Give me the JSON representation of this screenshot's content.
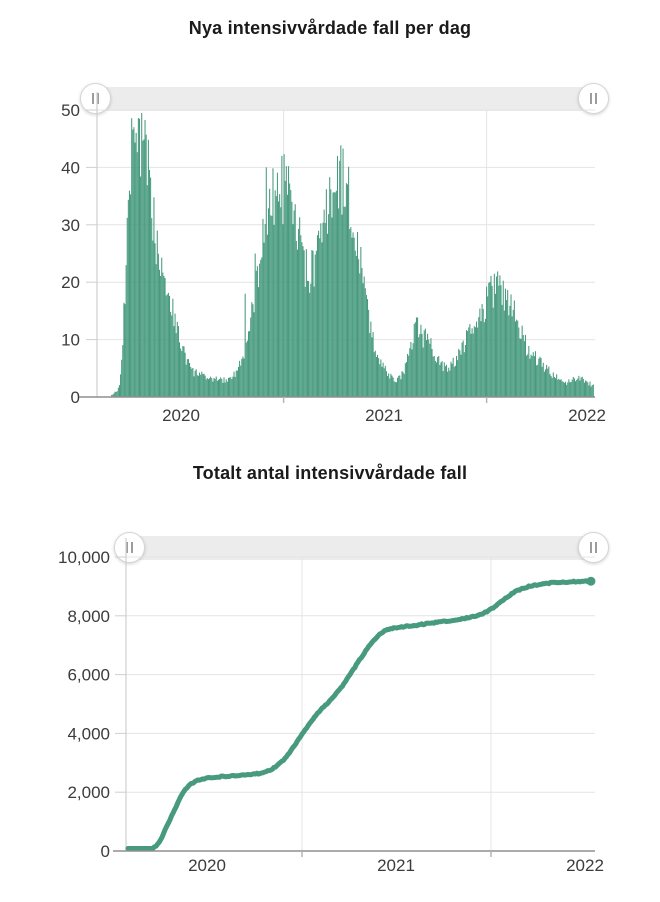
{
  "page": {
    "background": "#ffffff"
  },
  "chart_data": [
    {
      "type": "bar",
      "title": "Nya intensivvårdade fall per dag",
      "color": "#479a7e",
      "ylim": [
        0,
        50
      ],
      "ytick_labels": [
        "0",
        "10",
        "20",
        "30",
        "40",
        "50"
      ],
      "ytick_values": [
        0,
        10,
        20,
        30,
        40,
        50
      ],
      "xtick_year_labels": [
        "2020",
        "2021",
        "2022"
      ],
      "x_unit": "days since 2020-01-01",
      "grid": "on",
      "anchors": [
        [
          58,
          0.4
        ],
        [
          62,
          0.8
        ],
        [
          66,
          1.2
        ],
        [
          70,
          2
        ],
        [
          74,
          6
        ],
        [
          78,
          14
        ],
        [
          82,
          24
        ],
        [
          86,
          33
        ],
        [
          90,
          40
        ],
        [
          94,
          44
        ],
        [
          98,
          45
        ],
        [
          102,
          45
        ],
        [
          106,
          46
        ],
        [
          110,
          45
        ],
        [
          114,
          43
        ],
        [
          118,
          41
        ],
        [
          122,
          38
        ],
        [
          126,
          35
        ],
        [
          130,
          32
        ],
        [
          134,
          29
        ],
        [
          138,
          27
        ],
        [
          142,
          26
        ],
        [
          146,
          24
        ],
        [
          150,
          22
        ],
        [
          154,
          20
        ],
        [
          158,
          18
        ],
        [
          162,
          17
        ],
        [
          166,
          15
        ],
        [
          171,
          13
        ],
        [
          176,
          11
        ],
        [
          181,
          9
        ],
        [
          186,
          8
        ],
        [
          191,
          6.5
        ],
        [
          196,
          5.5
        ],
        [
          201,
          4.5
        ],
        [
          206,
          4
        ],
        [
          211,
          4.5
        ],
        [
          216,
          4
        ],
        [
          221,
          3.5
        ],
        [
          226,
          3.2
        ],
        [
          231,
          3.5
        ],
        [
          236,
          3
        ],
        [
          241,
          2.8
        ],
        [
          246,
          3.2
        ],
        [
          251,
          3.5
        ],
        [
          256,
          3
        ],
        [
          261,
          2.8
        ],
        [
          266,
          3.2
        ],
        [
          271,
          3.6
        ],
        [
          276,
          4
        ],
        [
          281,
          4.5
        ],
        [
          286,
          5.5
        ],
        [
          291,
          6.5
        ],
        [
          296,
          8
        ],
        [
          301,
          10
        ],
        [
          306,
          13
        ],
        [
          311,
          16
        ],
        [
          316,
          19
        ],
        [
          321,
          23
        ],
        [
          326,
          27
        ],
        [
          331,
          30
        ],
        [
          336,
          33
        ],
        [
          341,
          34
        ],
        [
          346,
          34
        ],
        [
          351,
          35
        ],
        [
          356,
          36
        ],
        [
          361,
          36
        ],
        [
          366,
          36
        ],
        [
          371,
          35
        ],
        [
          376,
          34
        ],
        [
          381,
          32
        ],
        [
          386,
          30
        ],
        [
          391,
          28
        ],
        [
          396,
          26
        ],
        [
          401,
          24
        ],
        [
          406,
          22
        ],
        [
          411,
          21
        ],
        [
          416,
          22
        ],
        [
          421,
          23
        ],
        [
          426,
          25
        ],
        [
          431,
          27
        ],
        [
          436,
          29
        ],
        [
          441,
          31
        ],
        [
          446,
          33
        ],
        [
          451,
          35
        ],
        [
          456,
          37
        ],
        [
          461,
          38
        ],
        [
          466,
          38
        ],
        [
          471,
          38
        ],
        [
          476,
          37
        ],
        [
          481,
          35
        ],
        [
          486,
          33
        ],
        [
          491,
          31
        ],
        [
          496,
          28
        ],
        [
          501,
          25
        ],
        [
          506,
          21
        ],
        [
          511,
          18
        ],
        [
          516,
          15
        ],
        [
          521,
          12
        ],
        [
          526,
          10
        ],
        [
          531,
          8.5
        ],
        [
          536,
          7
        ],
        [
          541,
          6
        ],
        [
          546,
          5
        ],
        [
          551,
          4.2
        ],
        [
          556,
          3.6
        ],
        [
          561,
          3.2
        ],
        [
          566,
          3
        ],
        [
          571,
          3.2
        ],
        [
          576,
          3.6
        ],
        [
          581,
          4.5
        ],
        [
          586,
          6
        ],
        [
          591,
          8
        ],
        [
          596,
          10
        ],
        [
          601,
          11.5
        ],
        [
          606,
          12
        ],
        [
          611,
          11.5
        ],
        [
          616,
          10.5
        ],
        [
          621,
          10
        ],
        [
          626,
          9.5
        ],
        [
          631,
          9
        ],
        [
          636,
          8
        ],
        [
          641,
          7
        ],
        [
          646,
          6
        ],
        [
          651,
          5.5
        ],
        [
          656,
          5.2
        ],
        [
          661,
          5
        ],
        [
          666,
          5.5
        ],
        [
          671,
          6
        ],
        [
          676,
          6.5
        ],
        [
          681,
          7.5
        ],
        [
          686,
          8.5
        ],
        [
          691,
          9.5
        ],
        [
          696,
          10.5
        ],
        [
          701,
          11
        ],
        [
          706,
          11.5
        ],
        [
          711,
          12.5
        ],
        [
          716,
          13.5
        ],
        [
          721,
          14.5
        ],
        [
          726,
          15.5
        ],
        [
          731,
          17
        ],
        [
          736,
          18
        ],
        [
          741,
          18.5
        ],
        [
          746,
          19
        ],
        [
          751,
          18.5
        ],
        [
          756,
          18
        ],
        [
          761,
          17.5
        ],
        [
          766,
          17
        ],
        [
          771,
          17
        ],
        [
          776,
          16.5
        ],
        [
          781,
          15.5
        ],
        [
          786,
          14
        ],
        [
          791,
          12
        ],
        [
          796,
          10.5
        ],
        [
          801,
          9
        ],
        [
          806,
          8
        ],
        [
          811,
          7.5
        ],
        [
          816,
          7
        ],
        [
          821,
          6.5
        ],
        [
          826,
          6
        ],
        [
          831,
          5.5
        ],
        [
          836,
          5
        ],
        [
          841,
          4.6
        ],
        [
          846,
          4.2
        ],
        [
          851,
          3.8
        ],
        [
          856,
          3.4
        ],
        [
          861,
          3
        ],
        [
          866,
          2.6
        ],
        [
          871,
          2.4
        ],
        [
          876,
          2.6
        ],
        [
          881,
          2.8
        ],
        [
          886,
          3
        ],
        [
          891,
          3.3
        ],
        [
          896,
          3.4
        ],
        [
          901,
          3.2
        ],
        [
          906,
          3
        ],
        [
          911,
          2.6
        ],
        [
          916,
          2.3
        ],
        [
          921,
          2
        ]
      ],
      "spikes": [
        [
          96,
          47
        ],
        [
          100,
          46
        ],
        [
          104,
          48.6
        ],
        [
          138,
          29
        ],
        [
          296,
          18
        ],
        [
          315,
          25
        ],
        [
          334,
          40
        ],
        [
          363,
          42
        ],
        [
          462,
          42
        ],
        [
          748,
          21
        ]
      ]
    },
    {
      "type": "line",
      "title": "Totalt antal intensivvårdade fall",
      "color": "#479a7e",
      "ylim": [
        0,
        10000
      ],
      "ytick_labels": [
        "0",
        "2,000",
        "4,000",
        "6,000",
        "8,000",
        "10,000"
      ],
      "ytick_values": [
        0,
        2000,
        4000,
        6000,
        8000,
        10000
      ],
      "xtick_year_labels": [
        "2020",
        "2021",
        "2022"
      ],
      "x_unit": "days since 2020-01-01",
      "grid": "on",
      "points": [
        [
          29,
          0
        ],
        [
          45,
          0.5
        ],
        [
          55,
          2
        ],
        [
          62,
          8
        ],
        [
          68,
          25
        ],
        [
          75,
          70
        ],
        [
          82,
          150
        ],
        [
          89,
          300
        ],
        [
          96,
          530
        ],
        [
          103,
          800
        ],
        [
          110,
          1080
        ],
        [
          117,
          1350
        ],
        [
          124,
          1600
        ],
        [
          131,
          1850
        ],
        [
          138,
          2060
        ],
        [
          145,
          2200
        ],
        [
          152,
          2300
        ],
        [
          159,
          2370
        ],
        [
          166,
          2420
        ],
        [
          173,
          2450
        ],
        [
          181,
          2480
        ],
        [
          195,
          2510
        ],
        [
          210,
          2530
        ],
        [
          225,
          2550
        ],
        [
          240,
          2565
        ],
        [
          255,
          2580
        ],
        [
          270,
          2605
        ],
        [
          283,
          2640
        ],
        [
          293,
          2680
        ],
        [
          303,
          2750
        ],
        [
          313,
          2850
        ],
        [
          323,
          2990
        ],
        [
          333,
          3170
        ],
        [
          343,
          3400
        ],
        [
          353,
          3650
        ],
        [
          363,
          3920
        ],
        [
          373,
          4180
        ],
        [
          383,
          4420
        ],
        [
          393,
          4640
        ],
        [
          403,
          4830
        ],
        [
          413,
          5010
        ],
        [
          423,
          5200
        ],
        [
          433,
          5400
        ],
        [
          443,
          5620
        ],
        [
          453,
          5870
        ],
        [
          463,
          6140
        ],
        [
          473,
          6420
        ],
        [
          483,
          6680
        ],
        [
          493,
          6930
        ],
        [
          503,
          7150
        ],
        [
          513,
          7350
        ],
        [
          523,
          7480
        ],
        [
          533,
          7550
        ],
        [
          543,
          7590
        ],
        [
          553,
          7615
        ],
        [
          563,
          7635
        ],
        [
          573,
          7655
        ],
        [
          583,
          7675
        ],
        [
          593,
          7700
        ],
        [
          603,
          7725
        ],
        [
          613,
          7750
        ],
        [
          623,
          7775
        ],
        [
          633,
          7795
        ],
        [
          643,
          7815
        ],
        [
          653,
          7835
        ],
        [
          663,
          7860
        ],
        [
          673,
          7890
        ],
        [
          683,
          7925
        ],
        [
          693,
          7965
        ],
        [
          703,
          8010
        ],
        [
          713,
          8070
        ],
        [
          723,
          8150
        ],
        [
          733,
          8260
        ],
        [
          743,
          8390
        ],
        [
          753,
          8530
        ],
        [
          763,
          8660
        ],
        [
          773,
          8780
        ],
        [
          783,
          8870
        ],
        [
          793,
          8940
        ],
        [
          803,
          9000
        ],
        [
          813,
          9040
        ],
        [
          823,
          9070
        ],
        [
          833,
          9095
        ],
        [
          843,
          9115
        ],
        [
          853,
          9130
        ],
        [
          863,
          9140
        ],
        [
          873,
          9150
        ],
        [
          883,
          9158
        ],
        [
          893,
          9164
        ],
        [
          903,
          9168
        ],
        [
          913,
          9172
        ],
        [
          923,
          9176
        ]
      ]
    }
  ],
  "colors": {
    "series_green": "#479a7e",
    "gridline": "#e4e4e4",
    "axis_line": "#8f8f8f",
    "minor_axis": "#cfcfcf",
    "tick_text": "#3c3c3c",
    "slider_track": "#ececec"
  }
}
